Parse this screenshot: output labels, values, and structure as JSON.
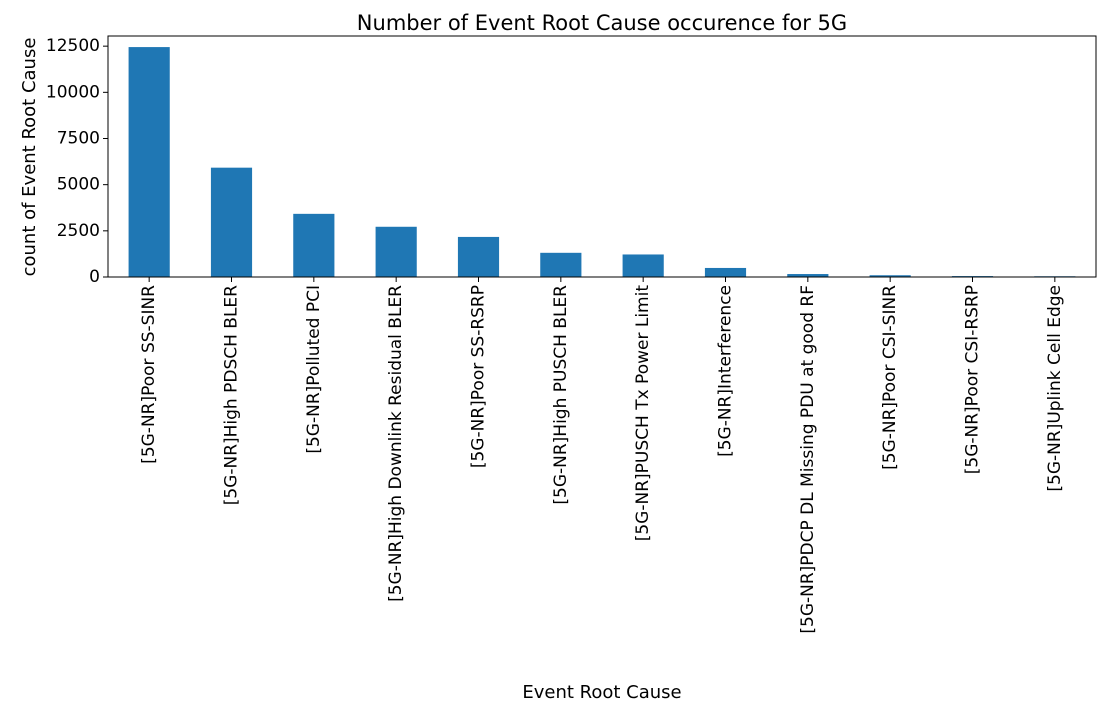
{
  "chart_data": {
    "type": "bar",
    "title": "Number of Event Root Cause occurence for 5G",
    "xlabel": "Event Root Cause",
    "ylabel": "count of Event Root Cause",
    "ylim": [
      0,
      13050
    ],
    "yticks": [
      0,
      2500,
      5000,
      7500,
      10000,
      12500
    ],
    "ytick_labels": [
      "0",
      "2500",
      "5000",
      "7500",
      "10000",
      "12500"
    ],
    "grid": false,
    "bar_color": "#1f77b4",
    "categories": [
      "[5G-NR]Poor SS-SINR",
      "[5G-NR]High PDSCH BLER",
      "[5G-NR]Polluted PCI",
      "[5G-NR]High Downlink Residual BLER",
      "[5G-NR]Poor SS-RSRP",
      "[5G-NR]High PUSCH BLER",
      "[5G-NR]PUSCH Tx Power Limit",
      "[5G-NR]Interference",
      "[5G-NR]PDCP DL Missing PDU at good RF",
      "[5G-NR]Poor CSI-SINR",
      "[5G-NR]Poor CSI-RSRP",
      "[5G-NR]Uplink Cell Edge"
    ],
    "values": [
      12450,
      5920,
      3420,
      2720,
      2170,
      1310,
      1220,
      490,
      160,
      95,
      50,
      40
    ]
  }
}
